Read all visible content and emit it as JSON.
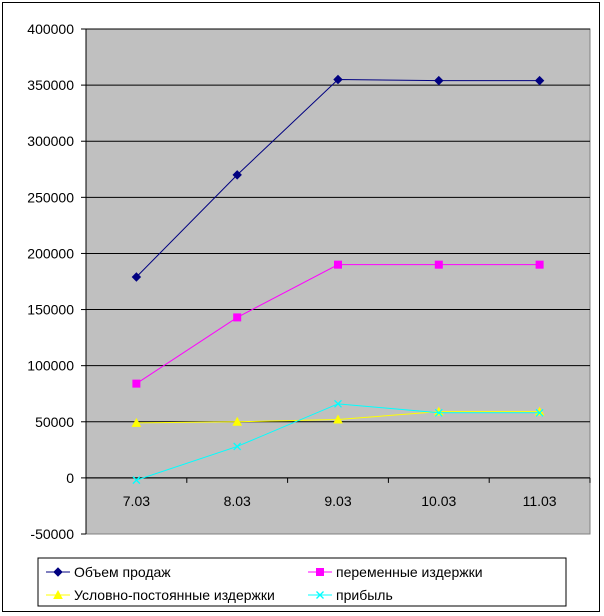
{
  "chart_data": {
    "type": "line",
    "categories": [
      "7.03",
      "8.03",
      "9.03",
      "10.03",
      "11.03"
    ],
    "ylim": [
      -50000,
      400000
    ],
    "ytick_step": 50000,
    "yticks": [
      "400000",
      "350000",
      "300000",
      "250000",
      "200000",
      "150000",
      "100000",
      "50000",
      "0",
      "-50000"
    ],
    "grid": true,
    "plot_background": "#c0c0c0",
    "legend_position": "bottom",
    "series": [
      {
        "name": "Объем продаж",
        "color": "#000080",
        "marker": "diamond",
        "values": [
          179000,
          270000,
          355000,
          354000,
          354000
        ]
      },
      {
        "name": "переменные издержки",
        "color": "#ff00ff",
        "marker": "square",
        "values": [
          84000,
          143000,
          190000,
          190000,
          190000
        ]
      },
      {
        "name": "Условно-постоянные издержки",
        "color": "#ffff00",
        "marker": "triangle",
        "values": [
          49000,
          50000,
          52000,
          59000,
          59000
        ]
      },
      {
        "name": "прибыль",
        "color": "#00ffff",
        "marker": "x",
        "values": [
          -2000,
          28000,
          66000,
          58000,
          58000
        ]
      }
    ]
  }
}
